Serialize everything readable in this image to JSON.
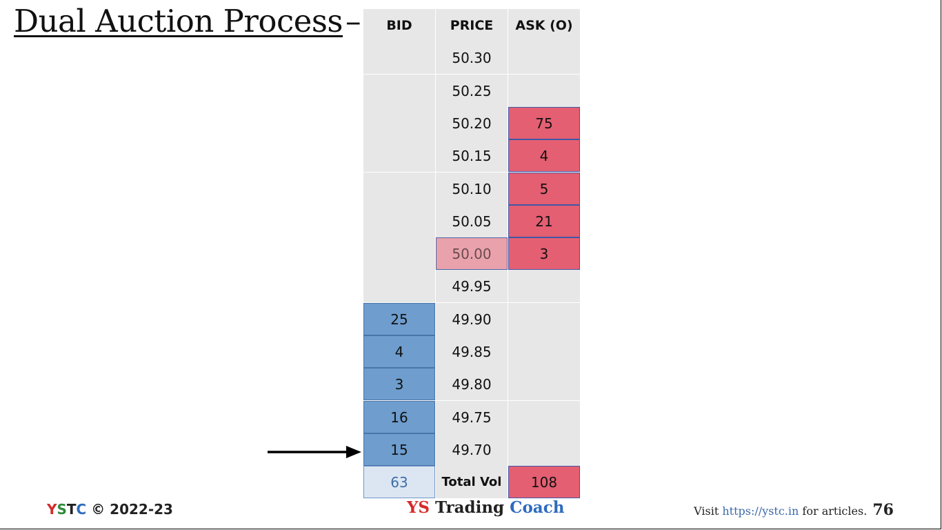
{
  "title": "Dual Auction Process",
  "title_dash": "–",
  "headers": {
    "bid": "BID",
    "price": "PRICE",
    "ask": "ASK (O)"
  },
  "rows": [
    {
      "bid": "",
      "price": "50.30",
      "ask": ""
    },
    {
      "bid": "",
      "price": "50.25",
      "ask": ""
    },
    {
      "bid": "",
      "price": "50.20",
      "ask": "75"
    },
    {
      "bid": "",
      "price": "50.15",
      "ask": "4"
    },
    {
      "bid": "",
      "price": "50.10",
      "ask": "5"
    },
    {
      "bid": "",
      "price": "50.05",
      "ask": "21"
    },
    {
      "bid": "",
      "price": "50.00",
      "ask": "3",
      "current": true
    },
    {
      "bid": "",
      "price": "49.95",
      "ask": ""
    },
    {
      "bid": "25",
      "price": "49.90",
      "ask": ""
    },
    {
      "bid": "4",
      "price": "49.85",
      "ask": ""
    },
    {
      "bid": "3",
      "price": "49.80",
      "ask": ""
    },
    {
      "bid": "16",
      "price": "49.75",
      "ask": ""
    },
    {
      "bid": "15",
      "price": "49.70",
      "ask": ""
    }
  ],
  "totals": {
    "bid": "63",
    "label": "Total Vol",
    "ask": "108"
  },
  "colors": {
    "bid_fill": "#6e9dce",
    "ask_fill": "#e45f72",
    "current_price_fill": "#e9a2ab",
    "cell_bg": "#e7e7e7",
    "logo_y": "#d62a2a",
    "logo_s": "#2e8a3a",
    "logo_t": "#222222",
    "logo_c": "#2e6bbf"
  },
  "footer": {
    "logo_letters": [
      "Y",
      "S",
      "T",
      "C"
    ],
    "copyright": "© 2022-23",
    "brand_ys": "YS",
    "brand_trading": "Trading",
    "brand_coach": "Coach",
    "visit_prefix": "Visit",
    "url": "https://ystc.in",
    "visit_suffix": "for articles.",
    "page_number": "76"
  }
}
